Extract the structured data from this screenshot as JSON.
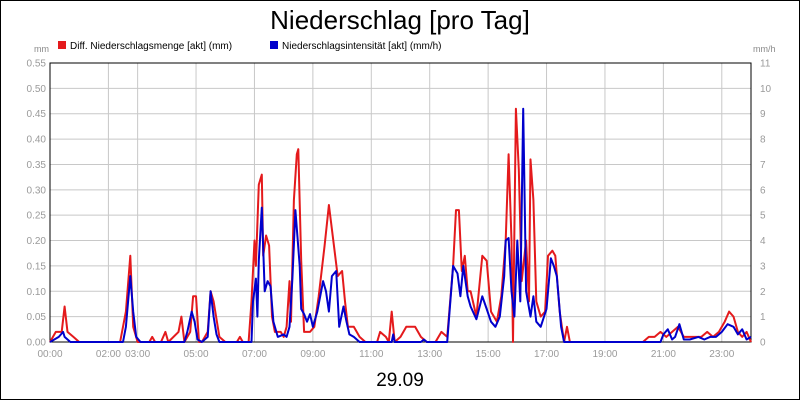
{
  "chart_data": {
    "type": "line",
    "title": "Niederschlag [pro Tag]",
    "date_label": "29.09",
    "y_left": {
      "unit": "mm",
      "range": [
        0,
        0.55
      ],
      "ticks": [
        "0.00",
        "0.05",
        "0.10",
        "0.15",
        "0.20",
        "0.25",
        "0.30",
        "0.35",
        "0.40",
        "0.45",
        "0.50",
        "0.55"
      ]
    },
    "y_right": {
      "unit": "mm/h",
      "range": [
        0,
        11
      ],
      "ticks": [
        "0",
        "1",
        "2",
        "3",
        "4",
        "5",
        "6",
        "7",
        "8",
        "9",
        "10",
        "11"
      ]
    },
    "x_axis": {
      "range_hours": [
        0,
        24
      ],
      "tick_hours": [
        0,
        2,
        3,
        5,
        7,
        9,
        11,
        13,
        15,
        17,
        19,
        21,
        23
      ],
      "tick_labels": [
        "00:00",
        "02:00",
        "03:00",
        "05:00",
        "07:00",
        "09:00",
        "11:00",
        "13:00",
        "15:00",
        "17:00",
        "19:00",
        "21:00",
        "23:00"
      ]
    },
    "grid": true,
    "legend_position": "top-left",
    "series": [
      {
        "name": "Diff. Niederschlagsmenge [akt] (mm)",
        "color": "#e41a1c",
        "axis": "left",
        "points": [
          [
            0,
            0
          ],
          [
            0.2,
            0.02
          ],
          [
            0.4,
            0.02
          ],
          [
            0.5,
            0.07
          ],
          [
            0.6,
            0.02
          ],
          [
            0.8,
            0.01
          ],
          [
            1,
            0
          ],
          [
            2.4,
            0
          ],
          [
            2.6,
            0.06
          ],
          [
            2.75,
            0.17
          ],
          [
            2.85,
            0.03
          ],
          [
            3,
            0
          ],
          [
            3.4,
            0
          ],
          [
            3.5,
            0.01
          ],
          [
            3.6,
            0
          ],
          [
            3.8,
            0
          ],
          [
            3.95,
            0.02
          ],
          [
            4.05,
            0
          ],
          [
            4.4,
            0.02
          ],
          [
            4.5,
            0.05
          ],
          [
            4.6,
            0
          ],
          [
            4.8,
            0.02
          ],
          [
            4.9,
            0.09
          ],
          [
            5,
            0.09
          ],
          [
            5.1,
            0
          ],
          [
            5.2,
            0
          ],
          [
            5.4,
            0.02
          ],
          [
            5.5,
            0.1
          ],
          [
            5.6,
            0.08
          ],
          [
            5.8,
            0.01
          ],
          [
            6,
            0
          ],
          [
            6.4,
            0
          ],
          [
            6.5,
            0.01
          ],
          [
            6.6,
            0
          ],
          [
            6.8,
            0
          ],
          [
            6.9,
            0.08
          ],
          [
            7,
            0.2
          ],
          [
            7.05,
            0.15
          ],
          [
            7.15,
            0.31
          ],
          [
            7.25,
            0.33
          ],
          [
            7.3,
            0.17
          ],
          [
            7.4,
            0.21
          ],
          [
            7.5,
            0.19
          ],
          [
            7.6,
            0.05
          ],
          [
            7.7,
            0.02
          ],
          [
            7.9,
            0.02
          ],
          [
            8,
            0.01
          ],
          [
            8.1,
            0.03
          ],
          [
            8.2,
            0.12
          ],
          [
            8.25,
            0.04
          ],
          [
            8.35,
            0.28
          ],
          [
            8.45,
            0.37
          ],
          [
            8.5,
            0.38
          ],
          [
            8.6,
            0.16
          ],
          [
            8.7,
            0.02
          ],
          [
            8.9,
            0.02
          ],
          [
            9.05,
            0.03
          ],
          [
            9.2,
            0.09
          ],
          [
            9.4,
            0.19
          ],
          [
            9.55,
            0.27
          ],
          [
            9.7,
            0.2
          ],
          [
            9.85,
            0.13
          ],
          [
            10,
            0.14
          ],
          [
            10.1,
            0.08
          ],
          [
            10.2,
            0.03
          ],
          [
            10.4,
            0.03
          ],
          [
            10.6,
            0.01
          ],
          [
            10.8,
            0
          ],
          [
            11.2,
            0
          ],
          [
            11.3,
            0.02
          ],
          [
            11.5,
            0.01
          ],
          [
            11.6,
            0
          ],
          [
            11.7,
            0.06
          ],
          [
            11.8,
            0
          ],
          [
            12,
            0.01
          ],
          [
            12.2,
            0.03
          ],
          [
            12.5,
            0.03
          ],
          [
            12.7,
            0.01
          ],
          [
            12.9,
            0
          ],
          [
            13.2,
            0
          ],
          [
            13.4,
            0.02
          ],
          [
            13.6,
            0.01
          ],
          [
            13.8,
            0.15
          ],
          [
            13.9,
            0.26
          ],
          [
            14,
            0.26
          ],
          [
            14.1,
            0.14
          ],
          [
            14.2,
            0.17
          ],
          [
            14.3,
            0.1
          ],
          [
            14.4,
            0.1
          ],
          [
            14.6,
            0.05
          ],
          [
            14.8,
            0.17
          ],
          [
            14.95,
            0.16
          ],
          [
            15.1,
            0.06
          ],
          [
            15.3,
            0.04
          ],
          [
            15.45,
            0.09
          ],
          [
            15.6,
            0.2
          ],
          [
            15.7,
            0.37
          ],
          [
            15.8,
            0.2
          ],
          [
            15.85,
            0
          ],
          [
            15.95,
            0.46
          ],
          [
            16.05,
            0.34
          ],
          [
            16.15,
            0.12
          ],
          [
            16.3,
            0.2
          ],
          [
            16.4,
            0.08
          ],
          [
            16.45,
            0.36
          ],
          [
            16.55,
            0.28
          ],
          [
            16.65,
            0.08
          ],
          [
            16.8,
            0.05
          ],
          [
            16.95,
            0.06
          ],
          [
            17.05,
            0.17
          ],
          [
            17.2,
            0.18
          ],
          [
            17.3,
            0.17
          ],
          [
            17.45,
            0.06
          ],
          [
            17.6,
            0
          ],
          [
            17.7,
            0.03
          ],
          [
            17.8,
            0
          ],
          [
            18.2,
            0
          ],
          [
            20.3,
            0
          ],
          [
            20.5,
            0.01
          ],
          [
            20.7,
            0.01
          ],
          [
            20.9,
            0.02
          ],
          [
            21.1,
            0.01
          ],
          [
            21.3,
            0.02
          ],
          [
            21.5,
            0.03
          ],
          [
            21.7,
            0.01
          ],
          [
            21.9,
            0.01
          ],
          [
            22.1,
            0.01
          ],
          [
            22.3,
            0.01
          ],
          [
            22.5,
            0.02
          ],
          [
            22.7,
            0.01
          ],
          [
            22.9,
            0.02
          ],
          [
            23.1,
            0.04
          ],
          [
            23.25,
            0.06
          ],
          [
            23.4,
            0.05
          ],
          [
            23.55,
            0.02
          ],
          [
            23.7,
            0.01
          ],
          [
            23.85,
            0.02
          ],
          [
            24,
            0
          ]
        ]
      },
      {
        "name": "Niederschlagsintensität [akt] (mm/h)",
        "color": "#0000cc",
        "axis": "right",
        "points": [
          [
            0,
            0
          ],
          [
            0.3,
            0.2
          ],
          [
            0.45,
            0.4
          ],
          [
            0.5,
            0.2
          ],
          [
            0.7,
            0
          ],
          [
            2.5,
            0
          ],
          [
            2.6,
            0.6
          ],
          [
            2.75,
            2.6
          ],
          [
            2.85,
            1.2
          ],
          [
            2.95,
            0.2
          ],
          [
            3.1,
            0
          ],
          [
            4.6,
            0
          ],
          [
            4.7,
            0.4
          ],
          [
            4.85,
            1.2
          ],
          [
            4.95,
            0.8
          ],
          [
            5.05,
            0.1
          ],
          [
            5.2,
            0
          ],
          [
            5.4,
            0.2
          ],
          [
            5.5,
            2
          ],
          [
            5.6,
            1
          ],
          [
            5.7,
            0.3
          ],
          [
            5.8,
            0
          ],
          [
            6.9,
            0
          ],
          [
            6.95,
            1.6
          ],
          [
            7.05,
            2.5
          ],
          [
            7.1,
            1
          ],
          [
            7.15,
            3.2
          ],
          [
            7.25,
            5.3
          ],
          [
            7.35,
            2
          ],
          [
            7.45,
            2.4
          ],
          [
            7.55,
            2.2
          ],
          [
            7.65,
            0.8
          ],
          [
            7.8,
            0.2
          ],
          [
            8,
            0.3
          ],
          [
            8.1,
            0.2
          ],
          [
            8.2,
            0.6
          ],
          [
            8.3,
            2.5
          ],
          [
            8.4,
            5.2
          ],
          [
            8.55,
            3
          ],
          [
            8.6,
            1.3
          ],
          [
            8.7,
            1.1
          ],
          [
            8.8,
            0.8
          ],
          [
            8.9,
            1.1
          ],
          [
            9,
            0.6
          ],
          [
            9.15,
            1.2
          ],
          [
            9.35,
            2.4
          ],
          [
            9.45,
            2
          ],
          [
            9.55,
            1.2
          ],
          [
            9.65,
            2.6
          ],
          [
            9.8,
            2.8
          ],
          [
            9.9,
            0.6
          ],
          [
            10.05,
            1.4
          ],
          [
            10.15,
            0.8
          ],
          [
            10.25,
            0.3
          ],
          [
            10.4,
            0.2
          ],
          [
            10.6,
            0
          ],
          [
            11.7,
            0
          ],
          [
            11.75,
            0.3
          ],
          [
            11.8,
            0
          ],
          [
            12.7,
            0
          ],
          [
            12.8,
            0.1
          ],
          [
            12.9,
            0
          ],
          [
            13.6,
            0
          ],
          [
            13.8,
            3
          ],
          [
            13.95,
            2.7
          ],
          [
            14.05,
            1.8
          ],
          [
            14.15,
            3
          ],
          [
            14.3,
            1.8
          ],
          [
            14.4,
            1.4
          ],
          [
            14.6,
            0.9
          ],
          [
            14.8,
            1.8
          ],
          [
            14.95,
            1.3
          ],
          [
            15.1,
            0.8
          ],
          [
            15.25,
            0.6
          ],
          [
            15.4,
            1
          ],
          [
            15.55,
            2.6
          ],
          [
            15.6,
            4
          ],
          [
            15.7,
            4.1
          ],
          [
            15.8,
            2
          ],
          [
            15.9,
            1
          ],
          [
            16,
            4
          ],
          [
            16.1,
            1.6
          ],
          [
            16.2,
            9.2
          ],
          [
            16.3,
            2
          ],
          [
            16.45,
            1
          ],
          [
            16.55,
            1.8
          ],
          [
            16.65,
            0.8
          ],
          [
            16.8,
            0.6
          ],
          [
            17,
            1.3
          ],
          [
            17.15,
            3.3
          ],
          [
            17.25,
            3
          ],
          [
            17.35,
            2.6
          ],
          [
            17.5,
            0.6
          ],
          [
            17.6,
            0
          ],
          [
            20.9,
            0
          ],
          [
            21,
            0.3
          ],
          [
            21.15,
            0.5
          ],
          [
            21.3,
            0.1
          ],
          [
            21.4,
            0.2
          ],
          [
            21.55,
            0.7
          ],
          [
            21.7,
            0.1
          ],
          [
            21.9,
            0.1
          ],
          [
            22.2,
            0.2
          ],
          [
            22.4,
            0.1
          ],
          [
            22.6,
            0.2
          ],
          [
            22.8,
            0.2
          ],
          [
            23,
            0.4
          ],
          [
            23.2,
            0.7
          ],
          [
            23.4,
            0.6
          ],
          [
            23.55,
            0.3
          ],
          [
            23.7,
            0.5
          ],
          [
            23.85,
            0.1
          ],
          [
            24,
            0.2
          ]
        ]
      }
    ]
  }
}
